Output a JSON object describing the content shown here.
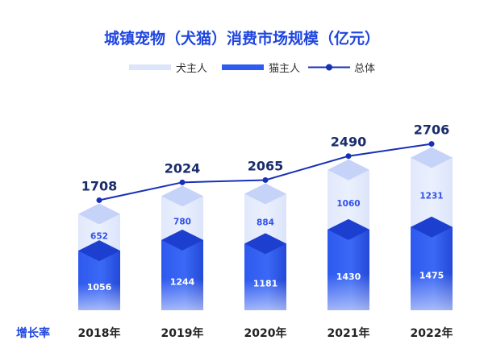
{
  "chart_data": {
    "type": "bar",
    "title": "城镇宠物（犬猫）消费市场规模（亿元）",
    "categories": [
      "2018年",
      "2019年",
      "2020年",
      "2021年",
      "2022年"
    ],
    "series": [
      {
        "name": "犬主人",
        "values": [
          652,
          780,
          884,
          1060,
          1231
        ],
        "color": "#dde5fa"
      },
      {
        "name": "猫主人",
        "values": [
          1056,
          1244,
          1181,
          1430,
          1475
        ],
        "color": "#2f5cf0"
      },
      {
        "name": "总体",
        "values": [
          1708,
          2024,
          2065,
          2490,
          2706
        ],
        "color": "#1730b8",
        "kind": "line"
      }
    ],
    "row_label": "增长率",
    "legend_position": "top",
    "stacked": true,
    "grid": false
  }
}
